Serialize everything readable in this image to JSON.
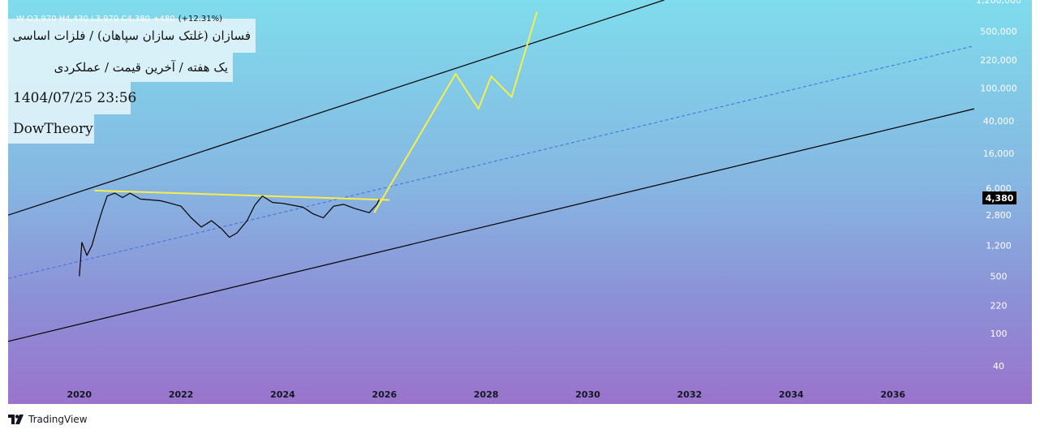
{
  "header": {
    "title": "فسازان (غلتک سازان سپاهان) / فلزات اساسی",
    "subtitle": "یک هفته / آخرین قیمت / عملکردی",
    "datetime": "1404/07/25 23:56",
    "author": "DowTheory",
    "ohlc": "W O3,970 H4,430 L3,970 C4,380 +480",
    "ohlc_change": "(+12.31%)"
  },
  "price_label": "4,380",
  "brand": "TradingView",
  "colors": {
    "channel": "#000000",
    "midline": "#3b6fe0",
    "projection": "#f5ef4a",
    "resistance": "#f5ef4a",
    "price": "#000000"
  },
  "chart_data": {
    "type": "line",
    "y_scale": "log",
    "ylim": [
      26,
      1200000
    ],
    "xlim": [
      2018.6,
      2037.6
    ],
    "y_ticks": [
      1200000,
      500000,
      220000,
      100000,
      40000,
      16000,
      6000,
      2800,
      1200,
      500,
      220,
      100,
      40
    ],
    "y_tick_labels": [
      "1,200,000",
      "500,000",
      "220,000",
      "100,000",
      "40,000",
      "16,000",
      "6,000",
      "2,800",
      "1,200",
      "500",
      "220",
      "100",
      "40"
    ],
    "x_ticks": [
      "2020",
      "2022",
      "2024",
      "2026",
      "2028",
      "2030",
      "2032",
      "2034",
      "2036"
    ],
    "series": [
      {
        "type": "price",
        "x": [
          2020.0,
          2020.05,
          2020.15,
          2020.25,
          2020.35,
          2020.45,
          2020.55,
          2020.7,
          2020.85,
          2021.0,
          2021.2,
          2021.4,
          2021.6,
          2021.8,
          2022.0,
          2022.2,
          2022.4,
          2022.6,
          2022.8,
          2022.95,
          2023.1,
          2023.3,
          2023.45,
          2023.6,
          2023.8,
          2024.0,
          2024.2,
          2024.4,
          2024.6,
          2024.8,
          2025.0,
          2025.2,
          2025.4,
          2025.55,
          2025.7,
          2025.85,
          2025.9
        ],
        "y": [
          500,
          1300,
          900,
          1200,
          2000,
          3200,
          4800,
          5200,
          4600,
          5200,
          4400,
          4300,
          4200,
          3900,
          3600,
          2600,
          2000,
          2400,
          1900,
          1500,
          1700,
          2400,
          3700,
          4800,
          4000,
          3900,
          3700,
          3500,
          2900,
          2600,
          3600,
          3800,
          3400,
          3200,
          3000,
          3800,
          4380
        ]
      },
      {
        "type": "projection",
        "x": [
          2025.8,
          2027.4,
          2027.85,
          2028.1,
          2028.5,
          2029.0
        ],
        "y": [
          3000,
          150000,
          56000,
          140000,
          78000,
          860000
        ]
      }
    ],
    "channel": {
      "upper": {
        "x": [
          2018.6,
          2031.5
        ],
        "y": [
          2800,
          1200000
        ]
      },
      "lower": {
        "x": [
          2018.6,
          2037.6
        ],
        "y": [
          80,
          56000
        ]
      },
      "middle": {
        "x": [
          2018.6,
          2037.6
        ],
        "y": [
          470,
          330000
        ]
      }
    },
    "resistance": {
      "x": [
        2020.3,
        2026.1
      ],
      "y": [
        5600,
        4300
      ]
    }
  }
}
